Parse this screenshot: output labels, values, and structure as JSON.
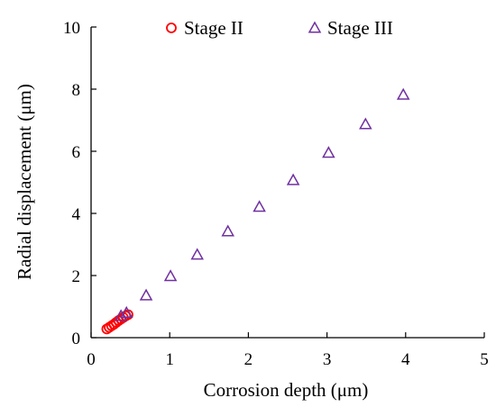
{
  "chart_data": {
    "type": "scatter",
    "title": "",
    "xlabel": "Corrosion depth (μm)",
    "ylabel": "Radial displacement (μm)",
    "xlim": [
      0,
      5
    ],
    "ylim": [
      0,
      10
    ],
    "xticks": [
      0,
      1,
      2,
      3,
      4,
      5
    ],
    "yticks": [
      0,
      2,
      4,
      6,
      8,
      10
    ],
    "grid": false,
    "legend_position": "top",
    "series": [
      {
        "name": "Stage II",
        "marker": "circle",
        "color": "#ff0000",
        "x": [
          0.2,
          0.23,
          0.26,
          0.29,
          0.32,
          0.35,
          0.38,
          0.41,
          0.44,
          0.47
        ],
        "y": [
          0.28,
          0.33,
          0.38,
          0.43,
          0.49,
          0.55,
          0.6,
          0.65,
          0.7,
          0.74
        ]
      },
      {
        "name": "Stage III",
        "marker": "triangle",
        "color": "#7030a0",
        "x": [
          0.38,
          0.45,
          0.7,
          1.01,
          1.35,
          1.74,
          2.14,
          2.57,
          3.02,
          3.49,
          3.97
        ],
        "y": [
          0.7,
          0.8,
          1.36,
          1.98,
          2.67,
          3.42,
          4.21,
          5.07,
          5.95,
          6.87,
          7.82
        ]
      }
    ]
  }
}
